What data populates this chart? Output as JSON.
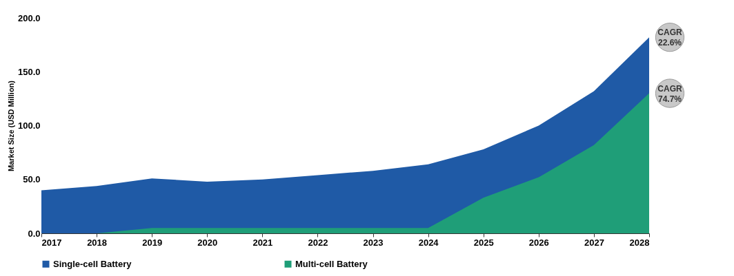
{
  "chart_data": {
    "type": "area",
    "ylabel": "Market Size (USD Million)",
    "x": [
      2017,
      2018,
      2019,
      2020,
      2021,
      2022,
      2023,
      2024,
      2025,
      2026,
      2027,
      2028
    ],
    "series": [
      {
        "name": "Single-cell Battery",
        "color": "#1f5aa6",
        "values": [
          40,
          44,
          51,
          48,
          50,
          54,
          58,
          64,
          78,
          100,
          132,
          182
        ]
      },
      {
        "name": "Multi-cell Battery",
        "color": "#1f9e78",
        "values": [
          0,
          0,
          5,
          5,
          5,
          5,
          5,
          5,
          33,
          52,
          82,
          130
        ]
      }
    ],
    "xlim": [
      2017,
      2028
    ],
    "xticks": [
      2017,
      2018,
      2019,
      2020,
      2021,
      2022,
      2023,
      2024,
      2025,
      2026,
      2027,
      2028
    ],
    "ylim": [
      0,
      200
    ],
    "yticks": [
      {
        "value": 0,
        "label": "0.0"
      },
      {
        "value": 50,
        "label": "50.0"
      },
      {
        "value": 100,
        "label": "100.0"
      },
      {
        "value": 150,
        "label": "150.0"
      },
      {
        "value": 200,
        "label": "200.0"
      }
    ],
    "annotations": [
      {
        "text": "CAGR\n22.6%",
        "x": 2028,
        "y": 182
      },
      {
        "text": "CAGR\n74.7%",
        "x": 2028,
        "y": 130
      }
    ],
    "legend": "bottom",
    "grid": false
  }
}
